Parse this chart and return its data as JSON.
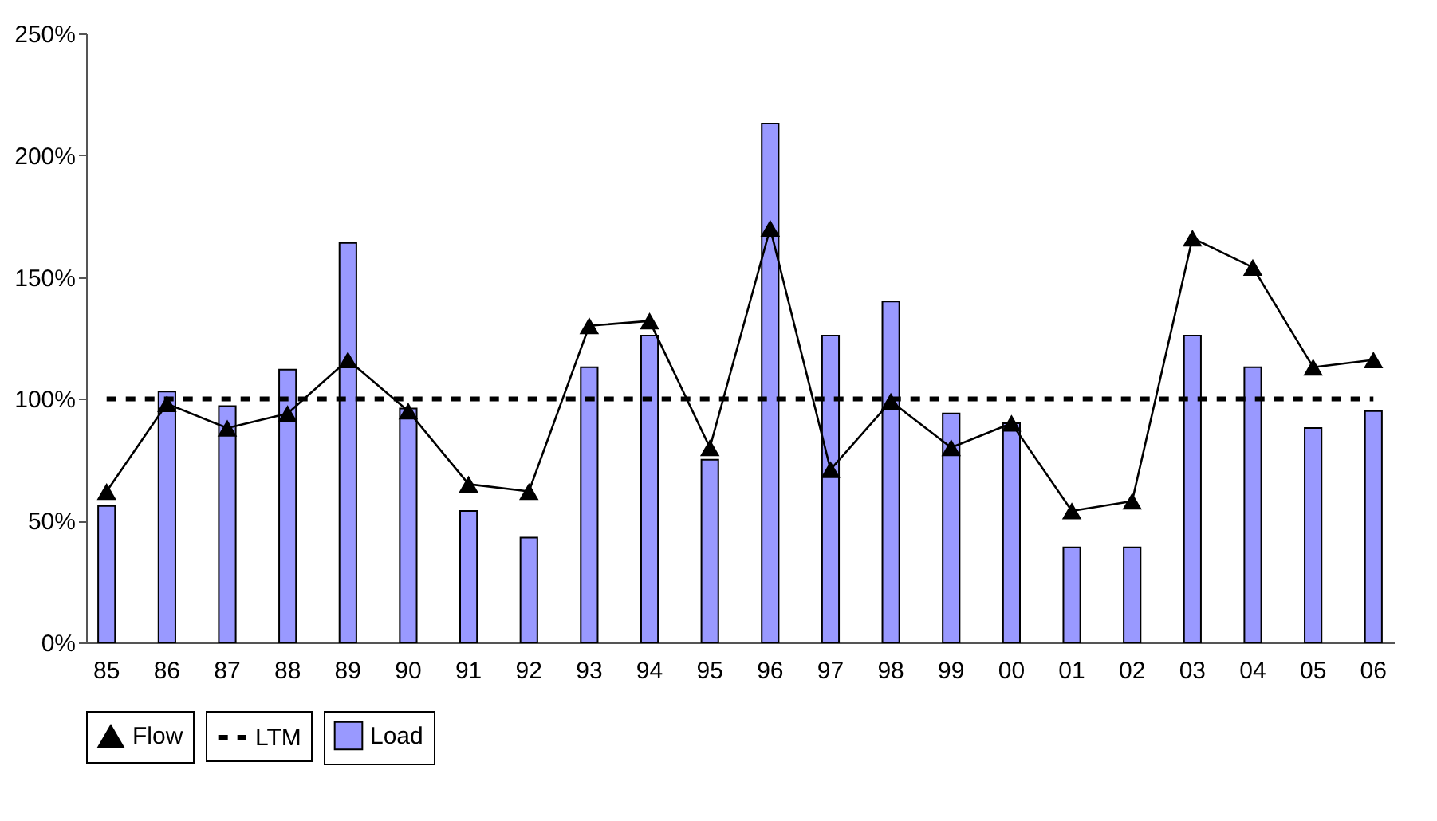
{
  "chart_data": {
    "type": "bar",
    "categories": [
      "85",
      "86",
      "87",
      "88",
      "89",
      "90",
      "91",
      "92",
      "93",
      "94",
      "95",
      "96",
      "97",
      "98",
      "99",
      "00",
      "01",
      "02",
      "03",
      "04",
      "05",
      "06"
    ],
    "series": [
      {
        "name": "Load",
        "color": "#9999ff",
        "values": [
          56,
          103,
          97,
          112,
          164,
          96,
          54,
          43,
          113,
          126,
          75,
          213,
          126,
          140,
          94,
          90,
          39,
          39,
          126,
          113,
          88,
          95
        ]
      },
      {
        "name": "Flow",
        "type": "line",
        "color": "#000000",
        "marker": "triangle",
        "line_style": "solid",
        "values": [
          62,
          98,
          88,
          94,
          116,
          95,
          65,
          62,
          130,
          132,
          80,
          170,
          71,
          99,
          80,
          90,
          54,
          58,
          166,
          154,
          113,
          116
        ]
      }
    ],
    "ref_lines": [
      {
        "axis": "y",
        "value": 100,
        "label": "LTM",
        "color": "#000000",
        "line_style": "dashed"
      }
    ],
    "ylim": [
      0,
      250
    ],
    "yticks": [
      {
        "value": 0,
        "label": "0%"
      },
      {
        "value": 50,
        "label": "50%"
      },
      {
        "value": 100,
        "label": "100%"
      },
      {
        "value": 150,
        "label": "150%"
      },
      {
        "value": 200,
        "label": "200%"
      },
      {
        "value": 250,
        "label": "250%"
      }
    ],
    "grid": false,
    "legend": "bottom"
  }
}
